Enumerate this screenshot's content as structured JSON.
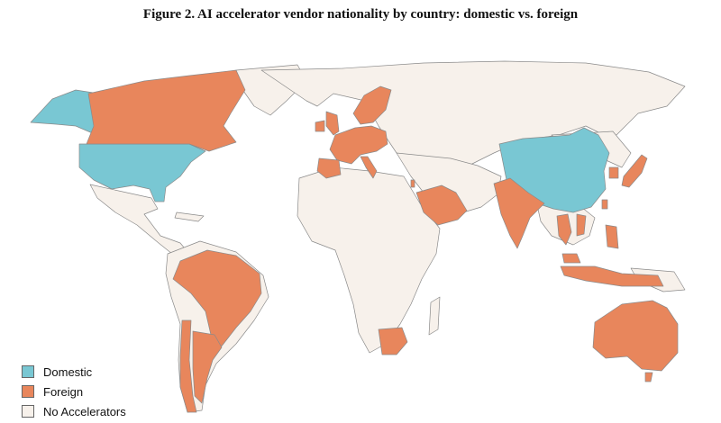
{
  "title": "Figure 2. AI accelerator vendor nationality by country: domestic vs. foreign",
  "colors": {
    "domestic": "#79c7d3",
    "foreign": "#e8865c",
    "none": "#f7f1eb",
    "border": "#8a8a8a"
  },
  "legend": [
    {
      "key": "domestic",
      "label": "Domestic"
    },
    {
      "key": "foreign",
      "label": "Foreign"
    },
    {
      "key": "none",
      "label": "No Accelerators"
    }
  ],
  "regions": {
    "domestic": [
      "United States",
      "China"
    ],
    "foreign": [
      "Canada",
      "Brazil",
      "Chile",
      "Argentina",
      "United Kingdom",
      "Ireland",
      "France",
      "Spain",
      "Portugal",
      "Germany",
      "Netherlands",
      "Belgium",
      "Switzerland",
      "Austria",
      "Italy",
      "Poland",
      "Czechia",
      "Denmark",
      "Norway",
      "Sweden",
      "Finland",
      "Saudi Arabia",
      "United Arab Emirates",
      "Qatar",
      "Israel",
      "India",
      "Thailand",
      "Vietnam",
      "Malaysia",
      "Singapore",
      "Indonesia",
      "Philippines",
      "Taiwan",
      "South Korea",
      "Japan",
      "Australia",
      "New Zealand",
      "South Africa"
    ]
  }
}
